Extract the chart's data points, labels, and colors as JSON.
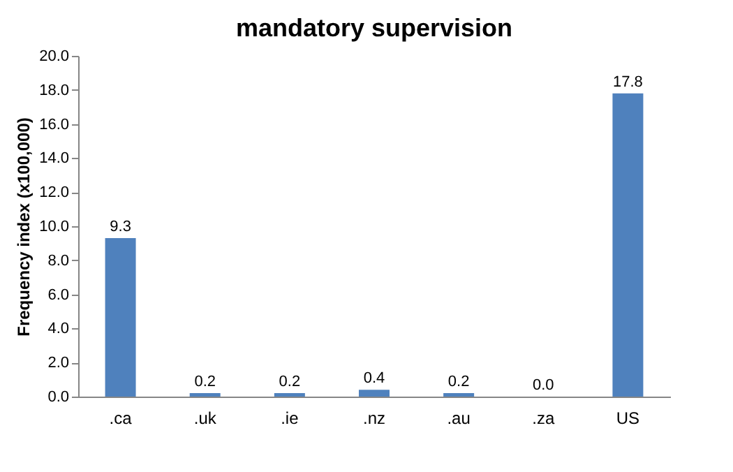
{
  "chart_data": {
    "type": "bar",
    "title": "mandatory supervision",
    "ylabel": "Frequency index (x100,000)",
    "categories": [
      ".ca",
      ".uk",
      ".ie",
      ".nz",
      ".au",
      ".za",
      "US"
    ],
    "values": [
      9.3,
      0.2,
      0.2,
      0.4,
      0.2,
      0.0,
      17.8
    ],
    "value_labels": [
      "9.3",
      "0.2",
      "0.2",
      "0.4",
      "0.2",
      "0.0",
      "17.8"
    ],
    "color": "#4f81bd",
    "ylim": [
      0,
      20
    ],
    "yticks": [
      {
        "value": 0,
        "label": "0.0"
      },
      {
        "value": 2,
        "label": "2.0"
      },
      {
        "value": 4,
        "label": "4.0"
      },
      {
        "value": 6,
        "label": "6.0"
      },
      {
        "value": 8,
        "label": "8.0"
      },
      {
        "value": 10,
        "label": "10.0"
      },
      {
        "value": 12,
        "label": "12.0"
      },
      {
        "value": 14,
        "label": "14.0"
      },
      {
        "value": 16,
        "label": "16.0"
      },
      {
        "value": 18,
        "label": "18.0"
      },
      {
        "value": 20,
        "label": "20.0"
      }
    ],
    "grid": false,
    "legend": false
  }
}
